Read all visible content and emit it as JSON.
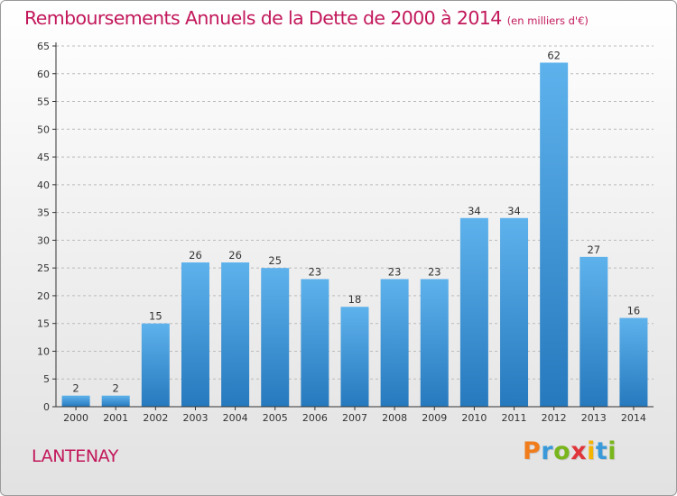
{
  "header": {
    "title": "Remboursements Annuels de la Dette de 2000 à 2014",
    "subtitle": "(en milliers d'€)"
  },
  "footer": {
    "city": "LANTENAY",
    "brand": "Proxiti"
  },
  "colors": {
    "title": "#c2185b",
    "bar_top": "#5eb2ec",
    "bar_bottom": "#2679bd",
    "axis": "#333333",
    "grid": "#bbbbbb",
    "brand_letters": [
      "#f07c1c",
      "#3a9ad9",
      "#79b51c",
      "#e0363b",
      "#f5b400",
      "#3a9ad9",
      "#79b51c"
    ]
  },
  "chart_data": {
    "type": "bar",
    "title": "Remboursements Annuels de la Dette de 2000 à 2014",
    "subtitle": "(en milliers d'€)",
    "xlabel": "",
    "ylabel": "",
    "categories": [
      "2000",
      "2001",
      "2002",
      "2003",
      "2004",
      "2005",
      "2006",
      "2007",
      "2008",
      "2009",
      "2010",
      "2011",
      "2012",
      "2013",
      "2014"
    ],
    "values": [
      2,
      2,
      15,
      26,
      26,
      25,
      23,
      18,
      23,
      23,
      34,
      34,
      62,
      27,
      16
    ],
    "value_labels": [
      "2",
      "2",
      "15",
      "26",
      "26",
      "25",
      "23",
      "18",
      "23",
      "23",
      "34",
      "34",
      "62",
      "27",
      "16"
    ],
    "ylim": [
      0,
      65
    ],
    "yticks": [
      0,
      5,
      10,
      15,
      20,
      25,
      30,
      35,
      40,
      45,
      50,
      55,
      60,
      65
    ],
    "ytick_labels": [
      "0",
      "5",
      "10",
      "15",
      "20",
      "25",
      "30",
      "35",
      "40",
      "45",
      "50",
      "55",
      "60",
      "65"
    ],
    "grid": "horizontal-dashed-at-ticks",
    "legend": "none"
  }
}
